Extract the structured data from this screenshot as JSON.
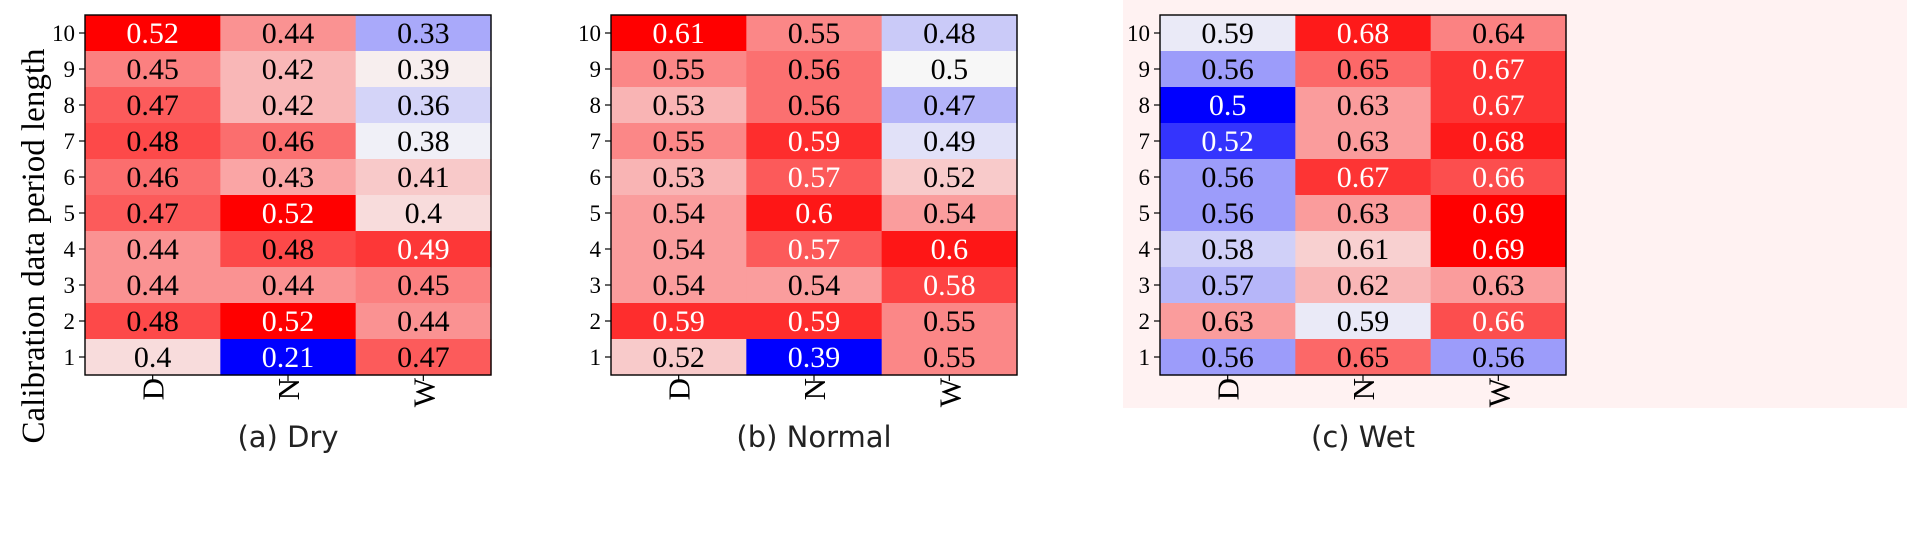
{
  "figure": {
    "ylabel": "Calibration data period length"
  },
  "chart_data": [
    {
      "type": "heatmap",
      "caption": "(a) Dry",
      "xlabel": "",
      "ylabel": "Calibration data period length",
      "x_categories": [
        "D",
        "N",
        "W"
      ],
      "y_categories": [
        "10",
        "9",
        "8",
        "7",
        "6",
        "5",
        "4",
        "3",
        "2",
        "1"
      ],
      "value_labels": [
        [
          "0.52",
          "0.44",
          "0.33"
        ],
        [
          "0.45",
          "0.42",
          "0.39"
        ],
        [
          "0.47",
          "0.42",
          "0.36"
        ],
        [
          "0.48",
          "0.46",
          "0.38"
        ],
        [
          "0.46",
          "0.43",
          "0.41"
        ],
        [
          "0.47",
          "0.52",
          "0.4"
        ],
        [
          "0.44",
          "0.48",
          "0.49"
        ],
        [
          "0.44",
          "0.44",
          "0.45"
        ],
        [
          "0.48",
          "0.52",
          "0.44"
        ],
        [
          "0.4",
          "0.21",
          "0.47"
        ]
      ],
      "color_scale": {
        "low": "#0000ff",
        "mid": "#f7f7f7",
        "high": "#ff0000",
        "vmin": 0.21,
        "vcenter": 0.385,
        "vmax": 0.52
      },
      "background": "#ffffff"
    },
    {
      "type": "heatmap",
      "caption": "(b) Normal",
      "xlabel": "",
      "ylabel": "",
      "x_categories": [
        "D",
        "N",
        "W"
      ],
      "y_categories": [
        "10",
        "9",
        "8",
        "7",
        "6",
        "5",
        "4",
        "3",
        "2",
        "1"
      ],
      "value_labels": [
        [
          "0.61",
          "0.55",
          "0.48"
        ],
        [
          "0.55",
          "0.56",
          "0.5"
        ],
        [
          "0.53",
          "0.56",
          "0.47"
        ],
        [
          "0.55",
          "0.59",
          "0.49"
        ],
        [
          "0.53",
          "0.57",
          "0.52"
        ],
        [
          "0.54",
          "0.6",
          "0.54"
        ],
        [
          "0.54",
          "0.57",
          "0.6"
        ],
        [
          "0.54",
          "0.54",
          "0.58"
        ],
        [
          "0.59",
          "0.59",
          "0.55"
        ],
        [
          "0.52",
          "0.39",
          "0.55"
        ]
      ],
      "color_scale": {
        "low": "#0000ff",
        "mid": "#f7f7f7",
        "high": "#ff0000",
        "vmin": 0.39,
        "vcenter": 0.5,
        "vmax": 0.61
      },
      "background": "#ffffff"
    },
    {
      "type": "heatmap",
      "caption": "(c) Wet",
      "xlabel": "",
      "ylabel": "",
      "x_categories": [
        "D",
        "N",
        "W"
      ],
      "y_categories": [
        "10",
        "9",
        "8",
        "7",
        "6",
        "5",
        "4",
        "3",
        "2",
        "1"
      ],
      "value_labels": [
        [
          "0.59",
          "0.68",
          "0.64"
        ],
        [
          "0.56",
          "0.65",
          "0.67"
        ],
        [
          "0.5",
          "0.63",
          "0.67"
        ],
        [
          "0.52",
          "0.63",
          "0.68"
        ],
        [
          "0.56",
          "0.67",
          "0.66"
        ],
        [
          "0.56",
          "0.63",
          "0.69"
        ],
        [
          "0.58",
          "0.61",
          "0.69"
        ],
        [
          "0.57",
          "0.62",
          "0.63"
        ],
        [
          "0.63",
          "0.59",
          "0.66"
        ],
        [
          "0.56",
          "0.65",
          "0.56"
        ]
      ],
      "color_scale": {
        "low": "#0000ff",
        "mid": "#f7f7f7",
        "high": "#ff0000",
        "vmin": 0.5,
        "vcenter": 0.595,
        "vmax": 0.69
      },
      "background": "#fff2f2"
    }
  ]
}
